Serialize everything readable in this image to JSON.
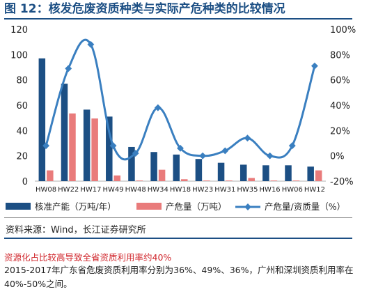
{
  "figure_title": "图 12：核发危废资质种类与实际产危种类的比较情况",
  "source": "资料来源：Wind，长江证券研究所",
  "article": {
    "heading": "资源化占比较高导致全省资质利用率约40%",
    "paragraph": "2015-2017年广东省危废资质利用率分别为36%、49%、36%，广州和深圳资质利用率在40%-50%之间。"
  },
  "colors": {
    "approved": "#1c4f84",
    "produced": "#e97b7b",
    "ratio": "#3a7fc0"
  },
  "chart_data": {
    "type": "bar",
    "categories": [
      "HW08",
      "HW22",
      "HW17",
      "HW49",
      "HW48",
      "HW34",
      "HW18",
      "HW23",
      "HW31",
      "HW35",
      "HW16",
      "HW06",
      "HW12"
    ],
    "series": [
      {
        "name": "核准产能（万吨/年）",
        "type": "bar",
        "axis": "left",
        "values": [
          97,
          77,
          56.5,
          51,
          27,
          23,
          21,
          17.5,
          14.5,
          13,
          12.5,
          12.5,
          11.5
        ]
      },
      {
        "name": "产危量（万吨）",
        "type": "bar",
        "axis": "left",
        "values": [
          8.5,
          53.5,
          49.5,
          4.5,
          0.5,
          9,
          1.5,
          0.5,
          0.5,
          2.5,
          0.5,
          0.5,
          8.5
        ]
      },
      {
        "name": "产危量/资质量（%）",
        "type": "line",
        "axis": "right",
        "values": [
          8,
          69,
          88,
          8,
          2,
          38,
          6,
          0,
          4,
          14,
          0,
          8,
          71
        ]
      }
    ],
    "yaxis_left": {
      "min": 0,
      "max": 120,
      "ticks": [
        "0",
        "20",
        "40",
        "60",
        "80",
        "100",
        "120"
      ]
    },
    "yaxis_right": {
      "min": -20,
      "max": 100,
      "ticks": [
        "-20%",
        "0%",
        "20%",
        "40%",
        "60%",
        "80%",
        "100%"
      ]
    },
    "legend_position": "bottom",
    "grid": false
  }
}
